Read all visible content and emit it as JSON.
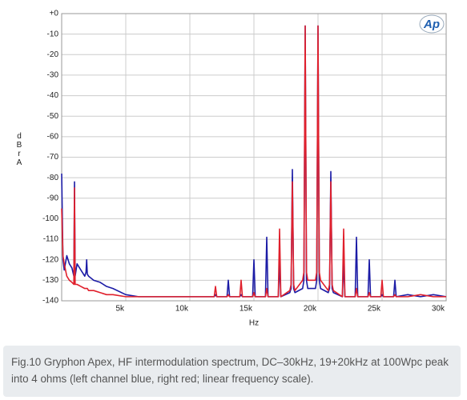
{
  "chart_data": {
    "type": "line",
    "logo": "Ap",
    "xlabel": "Hz",
    "ylabel": "dBr A",
    "x": [
      0,
      100,
      200,
      400,
      600,
      800,
      950,
      1000,
      1050,
      1200,
      1500,
      1800,
      1900,
      1950,
      2000,
      2100,
      2500,
      3000,
      3500,
      4000,
      5000,
      6000,
      8000,
      10000,
      11900,
      12000,
      12100,
      12900,
      13000,
      13100,
      13900,
      14000,
      14100,
      14900,
      15000,
      15100,
      15900,
      16000,
      16100,
      16900,
      17000,
      17100,
      17800,
      17900,
      18000,
      18100,
      18200,
      18800,
      18900,
      19000,
      19100,
      19200,
      19800,
      19900,
      20000,
      20100,
      20200,
      20800,
      20900,
      21000,
      21100,
      21200,
      21900,
      22000,
      22100,
      22900,
      23000,
      23100,
      23900,
      24000,
      24100,
      24900,
      25000,
      25100,
      25900,
      26000,
      26100,
      27000,
      28000,
      29000,
      30000
    ],
    "series": [
      {
        "name": "left channel",
        "color": "#1c1ca6",
        "values": [
          -78,
          -120,
          -125,
          -118,
          -122,
          -124,
          -128,
          -82,
          -128,
          -122,
          -125,
          -128,
          -126,
          -120,
          -127,
          -128,
          -130,
          -131,
          -133,
          -134,
          -137,
          -138,
          -138,
          -138,
          -138,
          -137,
          -138,
          -138,
          -130,
          -138,
          -138,
          -137,
          -138,
          -138,
          -120,
          -138,
          -138,
          -109,
          -138,
          -138,
          -121,
          -138,
          -136,
          -134,
          -76,
          -134,
          -136,
          -134,
          -130,
          -6,
          -130,
          -134,
          -134,
          -130,
          -6,
          -130,
          -134,
          -136,
          -134,
          -77,
          -134,
          -136,
          -138,
          -121,
          -138,
          -138,
          -109,
          -138,
          -138,
          -120,
          -138,
          -138,
          -137,
          -138,
          -138,
          -130,
          -138,
          -137,
          -138,
          -137,
          -138
        ]
      },
      {
        "name": "right channel",
        "color": "#e0202c",
        "values": [
          -95,
          -118,
          -122,
          -128,
          -130,
          -131,
          -132,
          -85,
          -132,
          -132,
          -133,
          -134,
          -134,
          -134,
          -134,
          -135,
          -135,
          -136,
          -137,
          -137,
          -138,
          -138,
          -138,
          -138,
          -138,
          -133,
          -138,
          -138,
          -137,
          -138,
          -138,
          -130,
          -138,
          -138,
          -136,
          -138,
          -138,
          -134,
          -138,
          -138,
          -105,
          -138,
          -135,
          -132,
          -82,
          -132,
          -135,
          -130,
          -126,
          -6,
          -126,
          -130,
          -130,
          -126,
          -6,
          -126,
          -130,
          -135,
          -132,
          -82,
          -132,
          -135,
          -138,
          -105,
          -138,
          -138,
          -134,
          -138,
          -138,
          -136,
          -138,
          -138,
          -130,
          -138,
          -138,
          -137,
          -138,
          -138,
          -137,
          -138,
          -138
        ]
      }
    ],
    "xlim": [
      0,
      30000
    ],
    "xticks": [
      {
        "value": 5000,
        "label": "5k"
      },
      {
        "value": 10000,
        "label": "10k"
      },
      {
        "value": 15000,
        "label": "15k"
      },
      {
        "value": 20000,
        "label": "20k"
      },
      {
        "value": 25000,
        "label": "25k"
      },
      {
        "value": 30000,
        "label": "30k"
      }
    ],
    "ylim": [
      -140,
      0
    ],
    "yticks": [
      {
        "value": 0,
        "label": "+0"
      },
      -10,
      -20,
      -30,
      -40,
      -50,
      -60,
      -70,
      -80,
      -90,
      -100,
      -110,
      -120,
      -130,
      -140
    ],
    "grid": true,
    "caption": "Fig.10 Gryphon Apex, HF intermodulation spectrum, DC–30kHz, 19+20kHz at 100Wpc peak into 4 ohms (left channel blue, right red; linear frequency scale)."
  }
}
